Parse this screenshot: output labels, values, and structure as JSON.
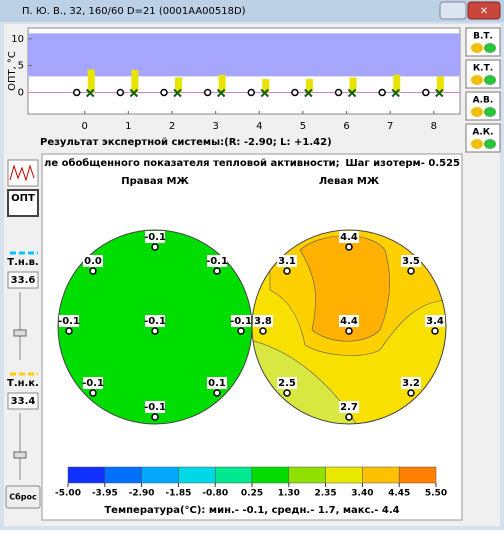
{
  "window": {
    "title": "П. Ю. В., 32, 160/60 D=21 (0001AA00518D)"
  },
  "top_chart": {
    "ylabel": "ОПТ, °C",
    "ylim": [
      -4,
      12
    ],
    "yticks": [
      0,
      5,
      10
    ],
    "xlim": [
      -1.3,
      8.6
    ],
    "xticks": [
      0,
      1,
      2,
      3,
      4,
      5,
      6,
      7,
      8
    ],
    "band": [
      3,
      11
    ],
    "band_color": "#a6a6ff",
    "bar_color": "#e8e400",
    "values": [
      4.3,
      4.2,
      2.8,
      3.3,
      2.5,
      2.5,
      2.8,
      3.3,
      3.0
    ]
  },
  "result": "Результат экспертной системы:(R: -2.90; L: +1.42)",
  "right_buttons": [
    "В.Т.",
    "К.Т.",
    "А.В.",
    "А.К."
  ],
  "left_panel": {
    "opt": "ОПТ",
    "tnv_label": "Т.н.в.",
    "tnv_value": "33.6",
    "tnk_label": "Т.н.к.",
    "tnk_value": "33.4",
    "reset": "Сброс"
  },
  "map": {
    "header": "ле обобщенного показателя тепловой активности;",
    "step": "Шаг изотерм- 0.525",
    "right_title": "Правая МЖ",
    "left_title": "Левая МЖ",
    "right_points": [
      "-0.1",
      "0.0",
      "-0.1",
      "-0.1",
      "-0.1",
      "-0.1",
      "-0.1",
      "0.1",
      "-0.1"
    ],
    "left_points": [
      "4.4",
      "3.1",
      "3.5",
      "3.8",
      "4.4",
      "3.4",
      "2.5",
      "3.2",
      "2.7"
    ],
    "scale_ticks": [
      {
        "value": -5,
        "label": "-5.00"
      },
      -3.95,
      {
        "value": -2.9,
        "label": "-2.90"
      },
      -1.85,
      {
        "value": -0.8,
        "label": "-0.80"
      },
      0.25,
      {
        "value": 1.3,
        "label": "1.30"
      },
      2.35,
      {
        "value": 3.4,
        "label": "3.40"
      },
      4.45,
      {
        "value": 5.5,
        "label": "5.50"
      }
    ],
    "scale_colors": [
      "#1030ff",
      "#0070ff",
      "#00a8ff",
      "#00d8e8",
      "#00e890",
      "#00dc00",
      "#90e000",
      "#e8e800",
      "#ffc000",
      "#ff8000"
    ],
    "footer": "Температура(°C): мин.-  -0.1,  средн.-  1.7,  макс.-  4.4"
  }
}
